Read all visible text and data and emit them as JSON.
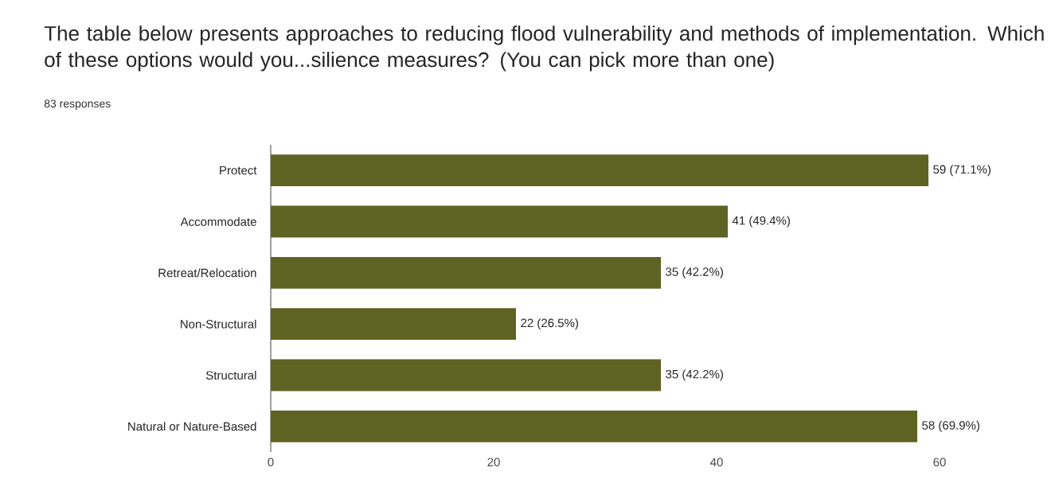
{
  "chart_data": {
    "type": "bar",
    "orientation": "horizontal",
    "title": "The table below presents approaches to reducing flood vulnerability and methods of implementation. Which of these options would you...silience measures? (You can pick more than one)",
    "subtitle": "83 responses",
    "categories": [
      "Protect",
      "Accommodate",
      "Retreat/Relocation",
      "Non-Structural",
      "Structural",
      "Natural or Nature-Based"
    ],
    "values": [
      59,
      41,
      35,
      22,
      35,
      58
    ],
    "value_labels": [
      "59 (71.1%)",
      "41 (49.4%)",
      "35 (42.2%)",
      "22 (26.5%)",
      "35 (42.2%)",
      "58 (69.9%)"
    ],
    "color": "#5e6323",
    "xlim": [
      0,
      60
    ],
    "xticks": [
      0,
      20,
      40,
      60
    ],
    "grid": false
  }
}
